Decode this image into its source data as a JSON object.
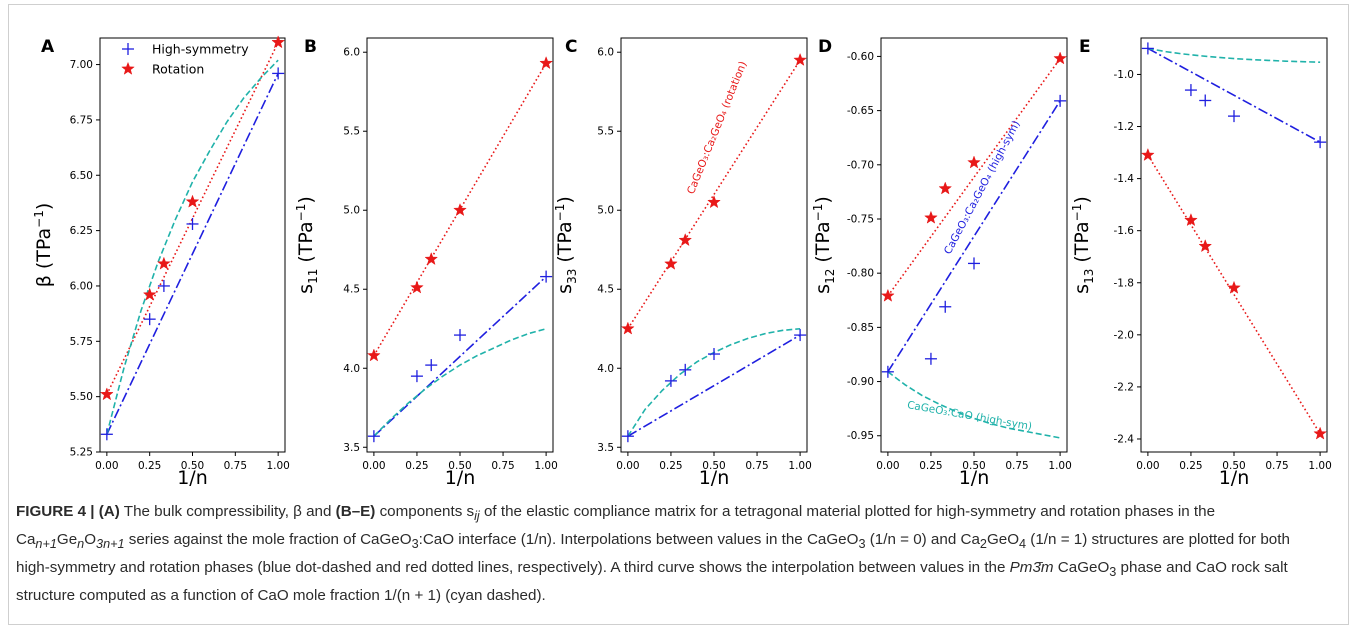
{
  "colors": {
    "high_sym": "#1f1fdf",
    "rotation": "#e81818",
    "interface": "#20b2aa",
    "frame": "#cfcfcf"
  },
  "chart_data": [
    {
      "type": "line",
      "panel_letter": "A",
      "ylabel": "β (TPa⁻¹)",
      "xlabel": "1/n",
      "xlim": [
        -0.04,
        1.04
      ],
      "ylim": [
        5.25,
        7.12
      ],
      "xticks": [
        "0.00",
        "0.25",
        "0.50",
        "0.75",
        "1.00"
      ],
      "yticks": [
        "5.25",
        "5.50",
        "5.75",
        "6.00",
        "6.25",
        "6.50",
        "6.75",
        "7.00"
      ],
      "legend": {
        "placement": "top-left",
        "entries": [
          "High-symmetry",
          "Rotation"
        ]
      },
      "series": [
        {
          "name": "High-symmetry",
          "kind": "points",
          "marker": "plus",
          "x": [
            0,
            0.25,
            0.333,
            0.5,
            1
          ],
          "y": [
            5.33,
            5.85,
            6.0,
            6.28,
            6.96
          ]
        },
        {
          "name": "Rotation",
          "kind": "points",
          "marker": "star",
          "x": [
            0,
            0.25,
            0.333,
            0.5,
            1
          ],
          "y": [
            5.51,
            5.96,
            6.1,
            6.38,
            7.1
          ]
        },
        {
          "kind": "line",
          "style": "dashdot",
          "color": "high_sym",
          "x": [
            0,
            1
          ],
          "y": [
            5.33,
            6.96
          ]
        },
        {
          "kind": "line",
          "style": "dotted",
          "color": "rotation",
          "x": [
            0,
            1
          ],
          "y": [
            5.51,
            7.1
          ]
        },
        {
          "kind": "curve",
          "style": "dashed",
          "color": "interface",
          "x": [
            0,
            0.1,
            0.2,
            0.3,
            0.4,
            0.5,
            0.6,
            0.7,
            0.8,
            0.9,
            1.0
          ],
          "y": [
            5.33,
            5.63,
            5.89,
            6.11,
            6.3,
            6.47,
            6.61,
            6.74,
            6.85,
            6.94,
            7.02
          ]
        }
      ]
    },
    {
      "type": "line",
      "panel_letter": "B",
      "ylabel": "s11 (TPa⁻¹)",
      "xlabel": "1/n",
      "xlim": [
        -0.04,
        1.04
      ],
      "ylim": [
        3.47,
        6.09
      ],
      "xticks": [
        "0.00",
        "0.25",
        "0.50",
        "0.75",
        "1.00"
      ],
      "yticks": [
        "3.5",
        "4.0",
        "4.5",
        "5.0",
        "5.5",
        "6.0"
      ],
      "series": [
        {
          "name": "High-symmetry",
          "kind": "points",
          "marker": "plus",
          "x": [
            0,
            0.25,
            0.333,
            0.5,
            1
          ],
          "y": [
            3.57,
            3.95,
            4.02,
            4.21,
            4.58
          ]
        },
        {
          "name": "Rotation",
          "kind": "points",
          "marker": "star",
          "x": [
            0,
            0.25,
            0.333,
            0.5,
            1
          ],
          "y": [
            4.08,
            4.51,
            4.69,
            5.0,
            5.93
          ]
        },
        {
          "kind": "line",
          "style": "dashdot",
          "color": "high_sym",
          "x": [
            0,
            1
          ],
          "y": [
            3.57,
            4.58
          ]
        },
        {
          "kind": "line",
          "style": "dotted",
          "color": "rotation",
          "x": [
            0,
            1
          ],
          "y": [
            4.08,
            5.93
          ]
        },
        {
          "kind": "curve",
          "style": "dashed",
          "color": "interface",
          "x": [
            0,
            0.1,
            0.2,
            0.3,
            0.4,
            0.5,
            0.6,
            0.7,
            0.8,
            0.9,
            1.0
          ],
          "y": [
            3.57,
            3.68,
            3.78,
            3.87,
            3.95,
            4.02,
            4.08,
            4.13,
            4.18,
            4.22,
            4.25
          ]
        }
      ]
    },
    {
      "type": "line",
      "panel_letter": "C",
      "ylabel": "s33 (TPa⁻¹)",
      "xlabel": "1/n",
      "xlim": [
        -0.04,
        1.04
      ],
      "ylim": [
        3.47,
        6.09
      ],
      "xticks": [
        "0.00",
        "0.25",
        "0.50",
        "0.75",
        "1.00"
      ],
      "yticks": [
        "3.5",
        "4.0",
        "4.5",
        "5.0",
        "5.5",
        "6.0"
      ],
      "annotations": [
        {
          "text": "CaGeO₃:Ca₂GeO₄ (rotation)",
          "color": "rotation"
        }
      ],
      "series": [
        {
          "name": "High-symmetry",
          "kind": "points",
          "marker": "plus",
          "x": [
            0,
            0.25,
            0.333,
            0.5,
            1
          ],
          "y": [
            3.57,
            3.92,
            3.99,
            4.09,
            4.21
          ]
        },
        {
          "name": "Rotation",
          "kind": "points",
          "marker": "star",
          "x": [
            0,
            0.25,
            0.333,
            0.5,
            1
          ],
          "y": [
            4.25,
            4.66,
            4.81,
            5.05,
            5.95
          ]
        },
        {
          "kind": "line",
          "style": "dashdot",
          "color": "high_sym",
          "x": [
            0,
            1
          ],
          "y": [
            3.57,
            4.21
          ]
        },
        {
          "kind": "line",
          "style": "dotted",
          "color": "rotation",
          "x": [
            0,
            1
          ],
          "y": [
            4.25,
            5.95
          ]
        },
        {
          "kind": "curve",
          "style": "dashed",
          "color": "interface",
          "x": [
            0,
            0.1,
            0.2,
            0.3,
            0.4,
            0.5,
            0.6,
            0.7,
            0.8,
            0.9,
            1.0
          ],
          "y": [
            3.57,
            3.74,
            3.86,
            3.96,
            4.04,
            4.1,
            4.15,
            4.19,
            4.22,
            4.24,
            4.25
          ]
        }
      ]
    },
    {
      "type": "line",
      "panel_letter": "D",
      "ylabel": "s12 (TPa⁻¹)",
      "xlabel": "1/n",
      "xlim": [
        -0.04,
        1.04
      ],
      "ylim": [
        -0.965,
        -0.583
      ],
      "xticks": [
        "0.00",
        "0.25",
        "0.50",
        "0.75",
        "1.00"
      ],
      "yticks": [
        "-0.60",
        "-0.65",
        "-0.70",
        "-0.75",
        "-0.80",
        "-0.85",
        "-0.90",
        "-0.95"
      ],
      "annotations": [
        {
          "text": "CaGeO₃:Ca₂GeO₄ (high-sym)",
          "color": "high_sym"
        },
        {
          "text": "CaGeO₃:CaO (high-sym)",
          "color": "interface"
        }
      ],
      "series": [
        {
          "name": "High-symmetry",
          "kind": "points",
          "marker": "plus",
          "x": [
            0,
            0.25,
            0.333,
            0.5,
            1
          ],
          "y": [
            -0.891,
            -0.879,
            -0.831,
            -0.791,
            -0.641
          ]
        },
        {
          "name": "Rotation",
          "kind": "points",
          "marker": "star",
          "x": [
            0,
            0.25,
            0.333,
            0.5,
            1
          ],
          "y": [
            -0.821,
            -0.749,
            -0.722,
            -0.698,
            -0.602
          ]
        },
        {
          "kind": "line",
          "style": "dashdot",
          "color": "high_sym",
          "x": [
            0,
            1
          ],
          "y": [
            -0.891,
            -0.641
          ]
        },
        {
          "kind": "line",
          "style": "dotted",
          "color": "rotation",
          "x": [
            0,
            1
          ],
          "y": [
            -0.821,
            -0.602
          ]
        },
        {
          "kind": "curve",
          "style": "dashed",
          "color": "interface",
          "x": [
            0,
            0.1,
            0.2,
            0.3,
            0.4,
            0.5,
            0.6,
            0.7,
            0.8,
            0.9,
            1.0
          ],
          "y": [
            -0.891,
            -0.903,
            -0.913,
            -0.921,
            -0.928,
            -0.934,
            -0.939,
            -0.943,
            -0.946,
            -0.949,
            -0.952
          ]
        }
      ]
    },
    {
      "type": "line",
      "panel_letter": "E",
      "ylabel": "s13 (TPa⁻¹)",
      "xlabel": "1/n",
      "xlim": [
        -0.04,
        1.04
      ],
      "ylim": [
        -2.45,
        -0.86
      ],
      "xticks": [
        "0.00",
        "0.25",
        "0.50",
        "0.75",
        "1.00"
      ],
      "yticks": [
        "-1.0",
        "-1.2",
        "-1.4",
        "-1.6",
        "-1.8",
        "-2.0",
        "-2.2",
        "-2.4"
      ],
      "series": [
        {
          "name": "High-symmetry",
          "kind": "points",
          "marker": "plus",
          "x": [
            0,
            0.25,
            0.333,
            0.5,
            1
          ],
          "y": [
            -0.9,
            -1.06,
            -1.1,
            -1.16,
            -1.26
          ]
        },
        {
          "name": "Rotation",
          "kind": "points",
          "marker": "star",
          "x": [
            0,
            0.25,
            0.333,
            0.5,
            1
          ],
          "y": [
            -1.31,
            -1.56,
            -1.66,
            -1.82,
            -2.38
          ]
        },
        {
          "kind": "line",
          "style": "dashdot",
          "color": "high_sym",
          "x": [
            0,
            1
          ],
          "y": [
            -0.9,
            -1.26
          ]
        },
        {
          "kind": "line",
          "style": "dotted",
          "color": "rotation",
          "x": [
            0,
            1
          ],
          "y": [
            -1.31,
            -2.38
          ]
        },
        {
          "kind": "curve",
          "style": "dashed",
          "color": "interface",
          "x": [
            0,
            0.1,
            0.2,
            0.3,
            0.4,
            0.5,
            0.6,
            0.7,
            0.8,
            0.9,
            1.0
          ],
          "y": [
            -0.9,
            -0.912,
            -0.921,
            -0.928,
            -0.934,
            -0.939,
            -0.943,
            -0.946,
            -0.949,
            -0.951,
            -0.953
          ]
        }
      ]
    }
  ],
  "caption": {
    "label": "FIGURE 4 |",
    "part_a": "(A)",
    "text_1": " The bulk compressibility, β and ",
    "part_be": "(B–E)",
    "text_2": " components s",
    "sub_ij": "ij",
    "text_3": " of the elastic compliance matrix for a tetragonal material plotted for high-symmetry and rotation phases in the Ca",
    "sub_n1": "n+1",
    "text_4": "Ge",
    "sub_n": "n",
    "text_5": "O",
    "sub_3n1": "3n+1",
    "text_6": " series against the mole fraction of CaGeO",
    "sub_3a": "3",
    "text_7": ":CaO interface (1/n). Interpolations between values in the CaGeO",
    "sub_3b": "3",
    "text_8": " (1/n = 0) and Ca",
    "sub_2": "2",
    "text_9": "GeO",
    "sub_4": "4",
    "text_10": " (1/n = 1) structures are plotted for both high-symmetry and rotation phases (blue dot-dashed and red dotted lines, respectively). A third curve shows the interpolation between values in the ",
    "pm3m": "Pm3̄m",
    "text_11": " CaGeO",
    "sub_3c": "3",
    "text_12": " phase and CaO rock salt structure computed as a function of CaO mole fraction 1/(n + 1) (cyan dashed)."
  }
}
